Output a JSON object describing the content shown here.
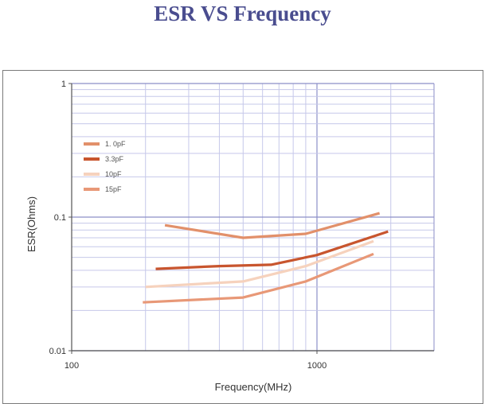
{
  "chart_data": {
    "type": "line",
    "title": "ESR VS Frequency",
    "xlabel": "Frequency(MHz)",
    "ylabel": "ESR(Ohms)",
    "xscale": "log",
    "yscale": "log",
    "xlim": [
      100,
      3000
    ],
    "ylim": [
      0.01,
      1
    ],
    "x_ticks": [
      {
        "value": 100,
        "label": "100"
      },
      {
        "value": 1000,
        "label": "1000"
      }
    ],
    "y_ticks": [
      {
        "value": 1,
        "label": "1"
      },
      {
        "value": 0.1,
        "label": "0.1"
      },
      {
        "value": 0.01,
        "label": "0.01"
      }
    ],
    "grid": true,
    "legend": "upper-left",
    "series": [
      {
        "name": "1. 0pF",
        "color": "#e2906a",
        "points": [
          [
            240,
            0.087
          ],
          [
            500,
            0.07
          ],
          [
            900,
            0.075
          ],
          [
            1800,
            0.107
          ]
        ]
      },
      {
        "name": "3.3pF",
        "color": "#c8552e",
        "points": [
          [
            220,
            0.041
          ],
          [
            400,
            0.043
          ],
          [
            650,
            0.044
          ],
          [
            1000,
            0.052
          ],
          [
            1950,
            0.078
          ]
        ]
      },
      {
        "name": "10pF",
        "color": "#f6d2bd",
        "points": [
          [
            200,
            0.03
          ],
          [
            500,
            0.033
          ],
          [
            900,
            0.043
          ],
          [
            1700,
            0.066
          ]
        ]
      },
      {
        "name": "15pF",
        "color": "#e89877",
        "points": [
          [
            195,
            0.023
          ],
          [
            500,
            0.025
          ],
          [
            900,
            0.033
          ],
          [
            1700,
            0.053
          ]
        ]
      }
    ]
  }
}
